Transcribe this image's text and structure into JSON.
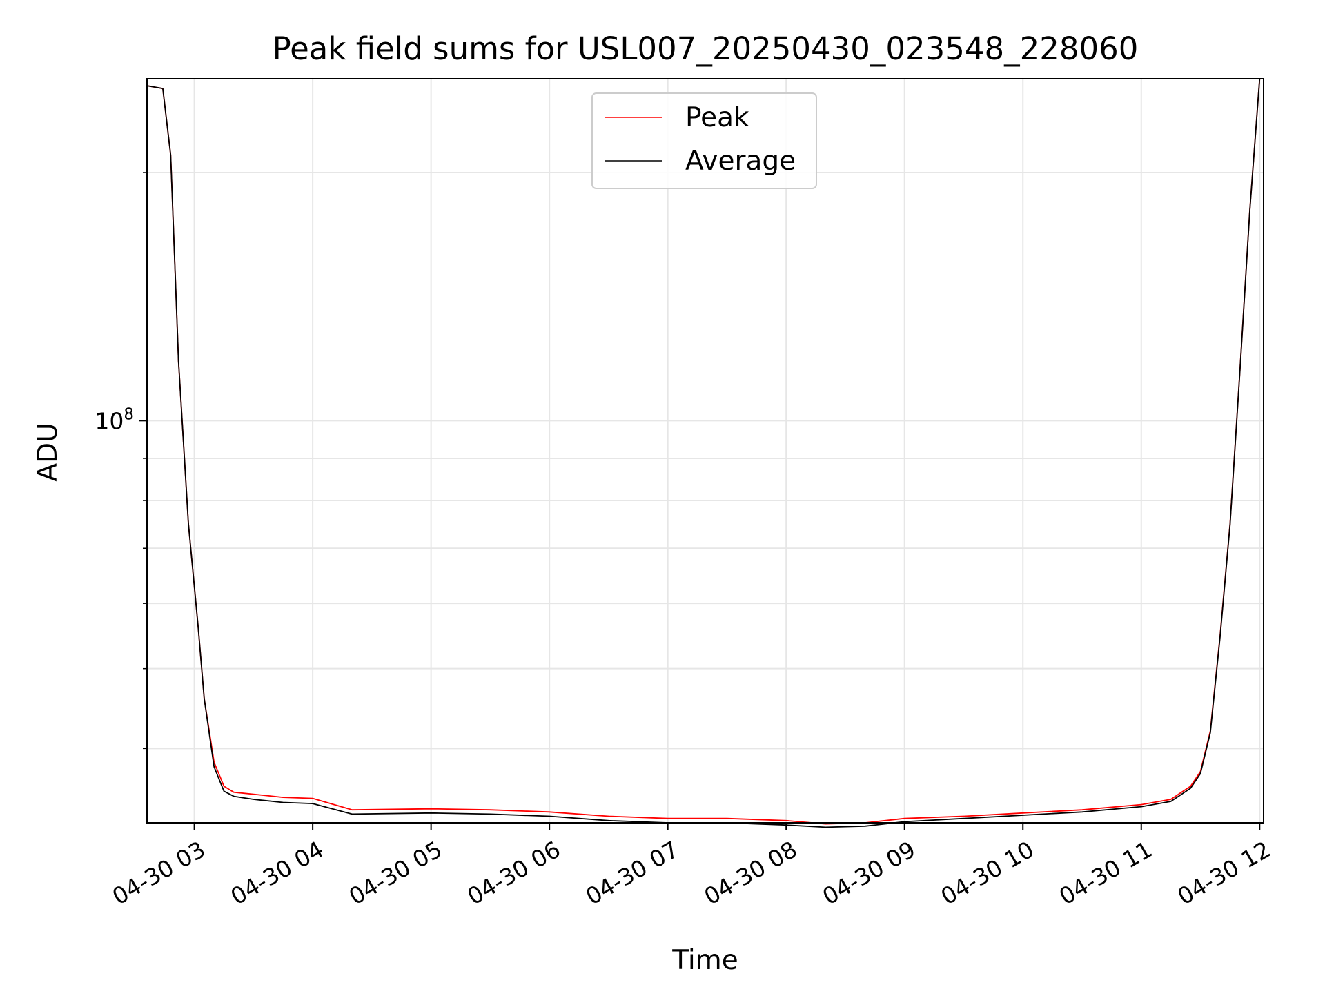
{
  "chart_data": {
    "type": "line",
    "title": "Peak field sums for USL007_20250430_023548_228060",
    "xlabel": "Time",
    "ylabel": "ADU",
    "yscale": "log",
    "grid": true,
    "legend_placement": "upper-center",
    "xlim": [
      "2025-04-30T02:36",
      "2025-04-30T12:02"
    ],
    "ylim": [
      32500000,
      260000000
    ],
    "x_ticks": [
      {
        "value": "2025-04-30T03:00",
        "label": "04-30 03"
      },
      {
        "value": "2025-04-30T04:00",
        "label": "04-30 04"
      },
      {
        "value": "2025-04-30T05:00",
        "label": "04-30 05"
      },
      {
        "value": "2025-04-30T06:00",
        "label": "04-30 06"
      },
      {
        "value": "2025-04-30T07:00",
        "label": "04-30 07"
      },
      {
        "value": "2025-04-30T08:00",
        "label": "04-30 08"
      },
      {
        "value": "2025-04-30T09:00",
        "label": "04-30 09"
      },
      {
        "value": "2025-04-30T10:00",
        "label": "04-30 10"
      },
      {
        "value": "2025-04-30T11:00",
        "label": "04-30 11"
      },
      {
        "value": "2025-04-30T12:00",
        "label": "04-30 12"
      }
    ],
    "y_major_ticks": [
      {
        "value": 100000000,
        "base": "10",
        "exp": "8"
      }
    ],
    "y_minor_ticks": [
      40000000,
      50000000,
      60000000,
      70000000,
      80000000,
      90000000,
      200000000
    ],
    "series": [
      {
        "name": "Peak",
        "color": "#ff0000",
        "x": [
          "2025-04-30T02:36",
          "2025-04-30T02:44",
          "2025-04-30T02:48",
          "2025-04-30T02:52",
          "2025-04-30T02:57",
          "2025-04-30T03:02",
          "2025-04-30T03:05",
          "2025-04-30T03:10",
          "2025-04-30T03:15",
          "2025-04-30T03:20",
          "2025-04-30T03:30",
          "2025-04-30T03:45",
          "2025-04-30T04:00",
          "2025-04-30T04:20",
          "2025-04-30T05:00",
          "2025-04-30T05:30",
          "2025-04-30T06:00",
          "2025-04-30T06:30",
          "2025-04-30T07:00",
          "2025-04-30T07:30",
          "2025-04-30T08:00",
          "2025-04-30T08:20",
          "2025-04-30T08:40",
          "2025-04-30T09:00",
          "2025-04-30T09:30",
          "2025-04-30T10:00",
          "2025-04-30T10:30",
          "2025-04-30T11:00",
          "2025-04-30T11:15",
          "2025-04-30T11:25",
          "2025-04-30T11:30",
          "2025-04-30T11:35",
          "2025-04-30T11:40",
          "2025-04-30T11:45",
          "2025-04-30T11:50",
          "2025-04-30T11:55",
          "2025-04-30T12:00"
        ],
        "y": [
          255000000,
          253000000,
          210000000,
          118000000,
          75000000,
          56000000,
          46000000,
          38500000,
          36000000,
          35400000,
          35200000,
          34900000,
          34800000,
          33700000,
          33800000,
          33700000,
          33500000,
          33100000,
          32900000,
          32900000,
          32700000,
          32400000,
          32500000,
          32900000,
          33100000,
          33400000,
          33700000,
          34200000,
          34700000,
          36000000,
          37500000,
          42000000,
          55000000,
          75000000,
          115000000,
          180000000,
          260000000
        ]
      },
      {
        "name": "Average",
        "color": "#000000",
        "x": [
          "2025-04-30T02:36",
          "2025-04-30T02:44",
          "2025-04-30T02:48",
          "2025-04-30T02:52",
          "2025-04-30T02:57",
          "2025-04-30T03:02",
          "2025-04-30T03:05",
          "2025-04-30T03:10",
          "2025-04-30T03:15",
          "2025-04-30T03:20",
          "2025-04-30T03:30",
          "2025-04-30T03:45",
          "2025-04-30T04:00",
          "2025-04-30T04:20",
          "2025-04-30T05:00",
          "2025-04-30T05:30",
          "2025-04-30T06:00",
          "2025-04-30T06:30",
          "2025-04-30T07:00",
          "2025-04-30T07:30",
          "2025-04-30T08:00",
          "2025-04-30T08:20",
          "2025-04-30T08:40",
          "2025-04-30T09:00",
          "2025-04-30T09:30",
          "2025-04-30T10:00",
          "2025-04-30T10:30",
          "2025-04-30T11:00",
          "2025-04-30T11:15",
          "2025-04-30T11:25",
          "2025-04-30T11:30",
          "2025-04-30T11:35",
          "2025-04-30T11:40",
          "2025-04-30T11:45",
          "2025-04-30T11:50",
          "2025-04-30T11:55",
          "2025-04-30T12:00"
        ],
        "y": [
          255000000,
          253000000,
          210000000,
          118000000,
          75000000,
          56000000,
          46000000,
          38000000,
          35500000,
          35000000,
          34700000,
          34400000,
          34300000,
          33300000,
          33400000,
          33300000,
          33100000,
          32700000,
          32500000,
          32500000,
          32300000,
          32100000,
          32200000,
          32600000,
          32900000,
          33200000,
          33500000,
          34000000,
          34500000,
          35800000,
          37300000,
          41800000,
          54800000,
          74800000,
          114800000,
          179800000,
          260000000
        ]
      }
    ]
  }
}
